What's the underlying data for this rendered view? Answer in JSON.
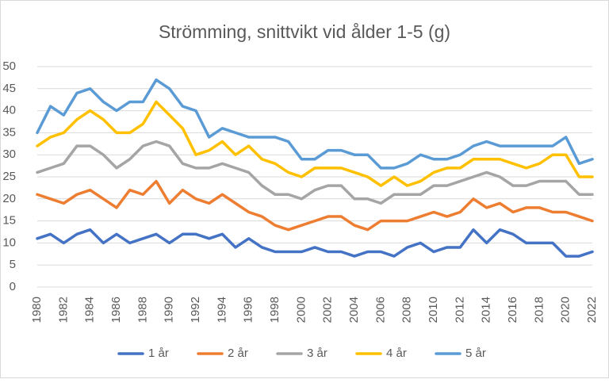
{
  "chart_data": {
    "type": "line",
    "title": "Strömming, snittvikt vid ålder 1-5 (g)",
    "x": [
      1980,
      1981,
      1982,
      1983,
      1984,
      1985,
      1986,
      1987,
      1988,
      1989,
      1990,
      1991,
      1992,
      1993,
      1994,
      1995,
      1996,
      1997,
      1998,
      1999,
      2000,
      2001,
      2002,
      2003,
      2004,
      2005,
      2006,
      2007,
      2008,
      2009,
      2010,
      2011,
      2012,
      2013,
      2014,
      2015,
      2016,
      2017,
      2018,
      2019,
      2020,
      2021,
      2022
    ],
    "xlim": [
      1980,
      2022
    ],
    "xticks": [
      1980,
      1982,
      1984,
      1986,
      1988,
      1990,
      1992,
      1994,
      1996,
      1998,
      2000,
      2002,
      2004,
      2006,
      2008,
      2010,
      2012,
      2014,
      2016,
      2018,
      2020,
      2022
    ],
    "ylim": [
      0,
      50
    ],
    "yticks": [
      0,
      5,
      10,
      15,
      20,
      25,
      30,
      35,
      40,
      45,
      50
    ],
    "grid": true,
    "legend": "bottom",
    "series": [
      {
        "name": "1 år",
        "color": "#4472c4",
        "values": [
          11,
          12,
          10,
          12,
          13,
          10,
          12,
          10,
          11,
          12,
          10,
          12,
          12,
          11,
          12,
          9,
          11,
          9,
          8,
          8,
          8,
          9,
          8,
          8,
          7,
          8,
          8,
          7,
          9,
          10,
          8,
          9,
          9,
          13,
          10,
          13,
          12,
          10,
          10,
          10,
          7,
          7,
          8
        ]
      },
      {
        "name": "2 år",
        "color": "#ed7d31",
        "values": [
          21,
          20,
          19,
          21,
          22,
          20,
          18,
          22,
          21,
          24,
          19,
          22,
          20,
          19,
          21,
          19,
          17,
          16,
          14,
          13,
          14,
          15,
          16,
          16,
          14,
          13,
          15,
          15,
          15,
          16,
          17,
          16,
          17,
          20,
          18,
          19,
          17,
          18,
          18,
          17,
          17,
          16,
          15
        ]
      },
      {
        "name": "3 år",
        "color": "#a5a5a5",
        "values": [
          26,
          27,
          28,
          32,
          32,
          30,
          27,
          29,
          32,
          33,
          32,
          28,
          27,
          27,
          28,
          27,
          26,
          23,
          21,
          21,
          20,
          22,
          23,
          23,
          20,
          20,
          19,
          21,
          21,
          21,
          23,
          23,
          24,
          25,
          26,
          25,
          23,
          23,
          24,
          24,
          24,
          21,
          21
        ]
      },
      {
        "name": "4 år",
        "color": "#ffc000",
        "values": [
          32,
          34,
          35,
          38,
          40,
          38,
          35,
          35,
          37,
          42,
          39,
          36,
          30,
          31,
          33,
          30,
          32,
          29,
          28,
          26,
          25,
          27,
          27,
          27,
          26,
          25,
          23,
          25,
          23,
          24,
          26,
          27,
          27,
          29,
          29,
          29,
          28,
          27,
          28,
          30,
          30,
          25,
          25
        ]
      },
      {
        "name": "5 år",
        "color": "#5b9bd5",
        "values": [
          35,
          41,
          39,
          44,
          45,
          42,
          40,
          42,
          42,
          47,
          45,
          41,
          40,
          34,
          36,
          35,
          34,
          34,
          34,
          33,
          29,
          29,
          31,
          31,
          30,
          30,
          27,
          27,
          28,
          30,
          29,
          29,
          30,
          32,
          33,
          32,
          32,
          32,
          32,
          32,
          34,
          28,
          29
        ]
      }
    ]
  }
}
